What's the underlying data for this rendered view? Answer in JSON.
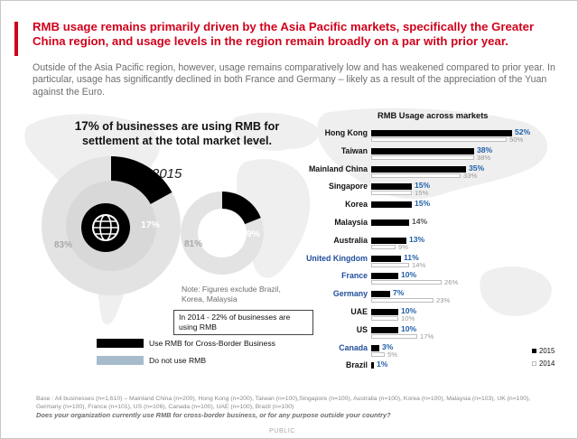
{
  "headline": "RMB usage remains primarily driven by the Asia Pacific markets, specifically the Greater China region, and usage levels in the region remain broadly on a par with prior year.",
  "subtext": "Outside of the Asia Pacific region, however, usage remains comparatively low and has weakened compared to prior year. In particular, usage has significantly declined in both France and Germany – likely as a result of the appreciation of the Yuan against the Euro.",
  "kpi": {
    "pct": "17%",
    "text": " of businesses are using RMB for settlement at the total market level."
  },
  "year_label": "2015",
  "donuts": [
    {
      "use_label": "17%",
      "not_label": "83%",
      "use": 17,
      "not": 83,
      "icon": "globe-icon"
    },
    {
      "use_label": "19%",
      "not_label": "81%",
      "use": 19,
      "not": 81
    }
  ],
  "note_exclude": "Note: Figures exclude Brazil, Korea, Malaysia",
  "note_2014": "In 2014 - 22% of businesses are using RMB",
  "legend": {
    "use": "Use RMB for Cross-Border Business",
    "not": "Do not use RMB",
    "use_color": "#000000",
    "not_color": "#a7bccb"
  },
  "chart_data": {
    "type": "bar",
    "orientation": "horizontal",
    "title": "RMB Usage across  markets",
    "categories": [
      "Hong Kong",
      "Taiwan",
      "Mainland China",
      "Singapore",
      "Korea",
      "Malaysia",
      "Australia",
      "United Kingdom",
      "France",
      "Germany",
      "UAE",
      "US",
      "Canada",
      "Brazil"
    ],
    "series": [
      {
        "name": "2015",
        "values": [
          52,
          38,
          35,
          15,
          15,
          14,
          13,
          11,
          10,
          7,
          10,
          10,
          3,
          1
        ],
        "labels": [
          "52%",
          "38%",
          "35%",
          "15%",
          "15%",
          "14%",
          "13%",
          "11%",
          "10%",
          "7%",
          "10%",
          "10%",
          "3%",
          "1%"
        ]
      },
      {
        "name": "2014",
        "values": [
          50,
          38,
          33,
          15,
          null,
          null,
          9,
          14,
          26,
          23,
          10,
          17,
          5,
          null
        ],
        "labels": [
          "50%",
          "38%",
          "33%",
          "15%",
          "",
          "",
          "9%",
          "14%",
          "26%",
          "23%",
          "10%",
          "17%",
          "5%",
          ""
        ]
      }
    ],
    "highlight_categories": [
      "United Kingdom",
      "France",
      "Germany",
      "Canada"
    ],
    "value_color_up": "#1f5fa8",
    "value_color_flat": "#555555",
    "legend_position": "right-bottom"
  },
  "footer": "Base : All businesses (n=1,610) – Mainland China (n=200), Hong Kong (n=200), Taiwan (n=100),Singapore (n=100), Australia (n=100), Korea (n=100), Malaysia (n=103), UK (n=100), Germany (n=100), France (n=101), US (n=106), Canada (n=100), UAE (n=100), Brazil (n=100)",
  "question": "Does your organization currently use RMB for cross-border business, or for any purpose outside your country?",
  "classification": "PUBLIC"
}
